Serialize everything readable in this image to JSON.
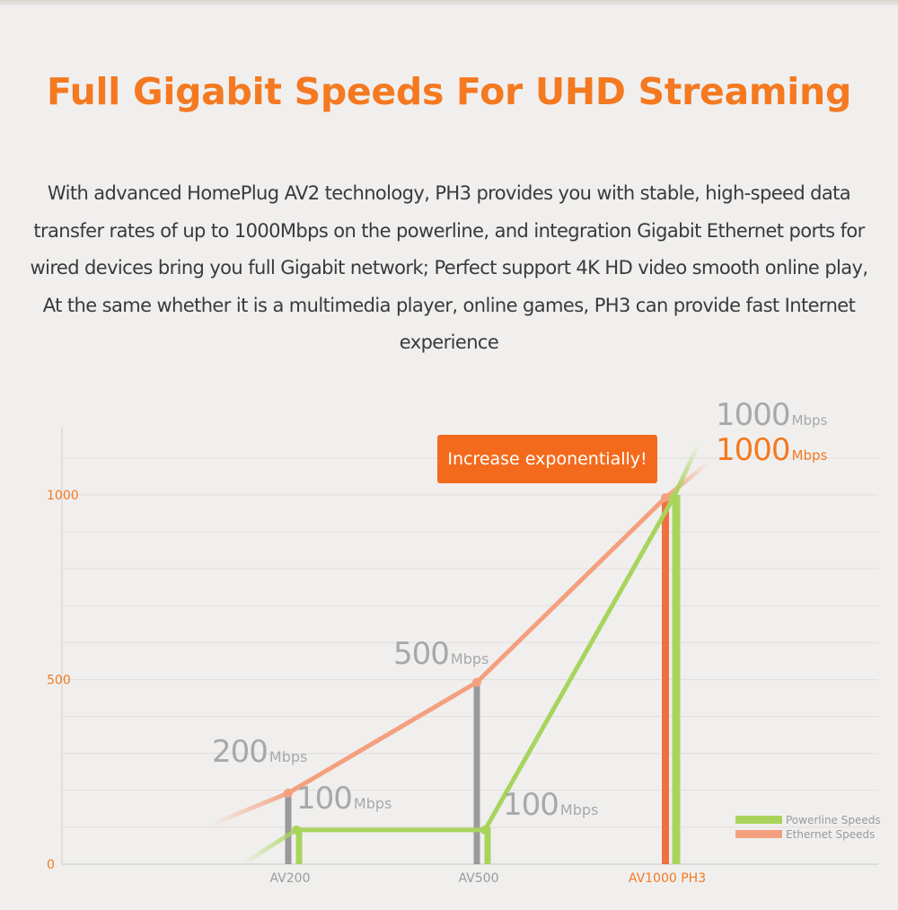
{
  "page": {
    "headline": "Full Gigabit Speeds For UHD Streaming",
    "description": "With advanced HomePlug AV2 technology, PH3 provides you with stable, high-speed data transfer rates of up to 1000Mbps on the powerline, and integration Gigabit Ethernet ports for wired devices bring you full Gigabit network; Perfect support 4K HD video smooth online play, At the same whether it is a multimedia player, online games, PH3 can provide fast Internet experience"
  },
  "colors": {
    "accent": "#f47920",
    "ethernet": "#f4a07e",
    "powerline": "#a9d45c",
    "gray_bar": "#9a9a9a",
    "callout_bg": "#f46a1c",
    "label_gray": "#a8a8a8"
  },
  "chart_data": {
    "type": "line",
    "categories": [
      "AV200",
      "AV500",
      "AV1000 PH3"
    ],
    "highlight_category": "AV1000 PH3",
    "y_ticks": [
      "0",
      "500",
      "1000"
    ],
    "ylim": [
      0,
      1100
    ],
    "grid": true,
    "legend_position": "bottom-right",
    "callout": "Increase exponentially!",
    "unit": "Mbps",
    "series": [
      {
        "name": "Powerline Speeds",
        "color": "#a9d45c",
        "values": [
          100,
          100,
          1000
        ],
        "labels": [
          "100",
          "100",
          "1000"
        ]
      },
      {
        "name": "Ethernet Speeds",
        "color": "#f4a07e",
        "values": [
          200,
          500,
          1000
        ],
        "labels": [
          "200",
          "500",
          "1000"
        ]
      }
    ]
  }
}
